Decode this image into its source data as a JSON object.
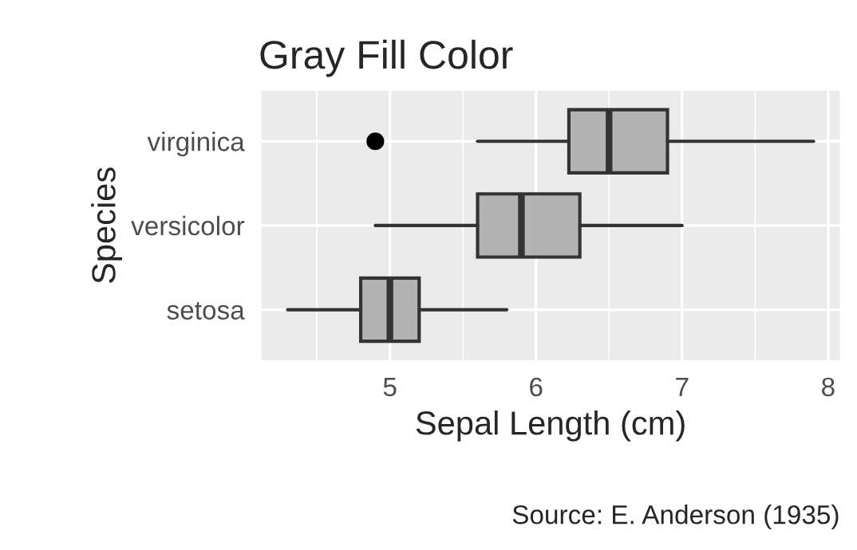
{
  "chart_data": {
    "type": "box",
    "orientation": "horizontal",
    "title": "Gray Fill Color",
    "xlabel": "Sepal Length (cm)",
    "ylabel": "Species",
    "categories": [
      "virginica",
      "versicolor",
      "setosa"
    ],
    "boxes": [
      {
        "low": 5.6,
        "q1": 6.225,
        "median": 6.5,
        "q3": 6.9,
        "high": 7.9,
        "outliers": [
          4.9
        ]
      },
      {
        "low": 4.9,
        "q1": 5.6,
        "median": 5.9,
        "q3": 6.3,
        "high": 7.0
      },
      {
        "low": 4.3,
        "q1": 4.8,
        "median": 5.0,
        "q3": 5.2,
        "high": 5.8
      }
    ],
    "color": "#b3b3b3",
    "xlim": [
      4.12,
      8.08
    ],
    "xticks": [
      5,
      6,
      7,
      8
    ],
    "grid": true,
    "annotations": [
      "Source: E. Anderson (1935)"
    ]
  }
}
